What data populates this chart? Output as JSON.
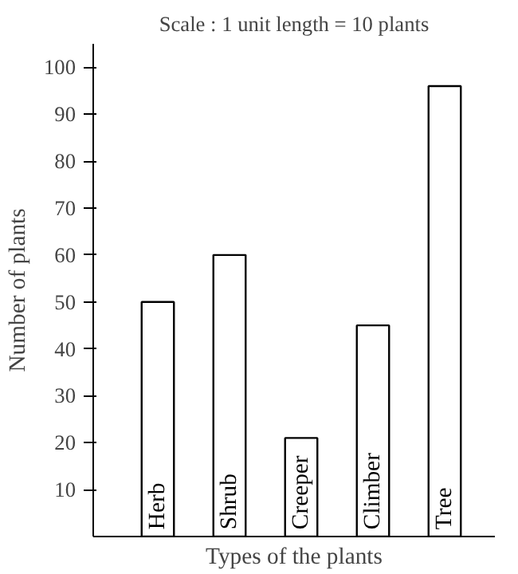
{
  "chart_data": {
    "type": "bar",
    "annotations": [
      "Scale : 1 unit length = 10 plants"
    ],
    "xlabel": "Types of the plants",
    "ylabel": "Number of plants",
    "categories": [
      "Herb",
      "Shrub",
      "Creeper",
      "Climber",
      "Tree"
    ],
    "values": [
      50,
      60,
      21,
      45,
      96
    ],
    "color": "#ffffff",
    "ylim": [
      0,
      105
    ],
    "yticks": [
      10,
      20,
      30,
      40,
      50,
      60,
      70,
      80,
      90,
      100
    ],
    "grid": false
  }
}
